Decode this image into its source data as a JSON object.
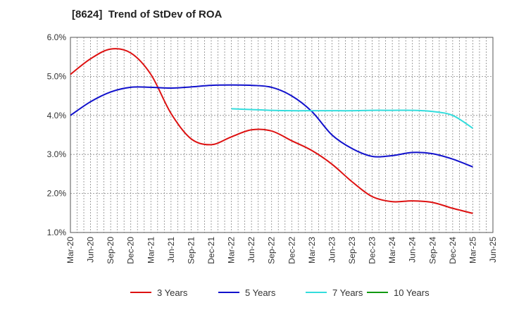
{
  "chart_data": {
    "type": "line",
    "title": "[8624]  Trend of StDev of ROA",
    "xlabel": "",
    "ylabel": "",
    "ylim": [
      1.0,
      6.0
    ],
    "y_ticks": [
      1.0,
      2.0,
      3.0,
      4.0,
      5.0,
      6.0
    ],
    "y_tick_labels": [
      "1.0%",
      "2.0%",
      "3.0%",
      "4.0%",
      "5.0%",
      "6.0%"
    ],
    "x_ticks": [
      "Mar-20",
      "Jun-20",
      "Sep-20",
      "Dec-20",
      "Mar-21",
      "Jun-21",
      "Sep-21",
      "Dec-21",
      "Mar-22",
      "Jun-22",
      "Sep-22",
      "Dec-22",
      "Mar-23",
      "Jun-23",
      "Sep-23",
      "Dec-23",
      "Mar-24",
      "Jun-24",
      "Sep-24",
      "Dec-24",
      "Mar-25",
      "Jun-25"
    ],
    "grid": true,
    "legend_position": "bottom",
    "series": [
      {
        "name": "3 Years",
        "color": "#dd1111",
        "values": [
          5.05,
          5.45,
          5.7,
          5.6,
          5.05,
          4.05,
          3.4,
          3.25,
          3.45,
          3.63,
          3.6,
          3.35,
          3.1,
          2.75,
          2.3,
          1.92,
          1.79,
          1.81,
          1.77,
          1.62,
          1.49
        ]
      },
      {
        "name": "5 Years",
        "color": "#1111cc",
        "values": [
          4.0,
          4.35,
          4.6,
          4.72,
          4.72,
          4.7,
          4.73,
          4.77,
          4.78,
          4.77,
          4.72,
          4.5,
          4.1,
          3.5,
          3.15,
          2.95,
          2.97,
          3.05,
          3.02,
          2.88,
          2.68
        ]
      },
      {
        "name": "7 Years",
        "color": "#33dddd",
        "values": [
          null,
          null,
          null,
          null,
          null,
          null,
          null,
          null,
          4.17,
          4.15,
          4.13,
          4.12,
          4.12,
          4.12,
          4.12,
          4.13,
          4.13,
          4.13,
          4.1,
          4.0,
          3.67
        ]
      },
      {
        "name": "10 Years",
        "color": "#119911",
        "values": [
          null,
          null,
          null,
          null,
          null,
          null,
          null,
          null,
          null,
          null,
          null,
          null,
          null,
          null,
          null,
          null,
          null,
          null,
          null,
          null,
          null
        ]
      }
    ]
  }
}
